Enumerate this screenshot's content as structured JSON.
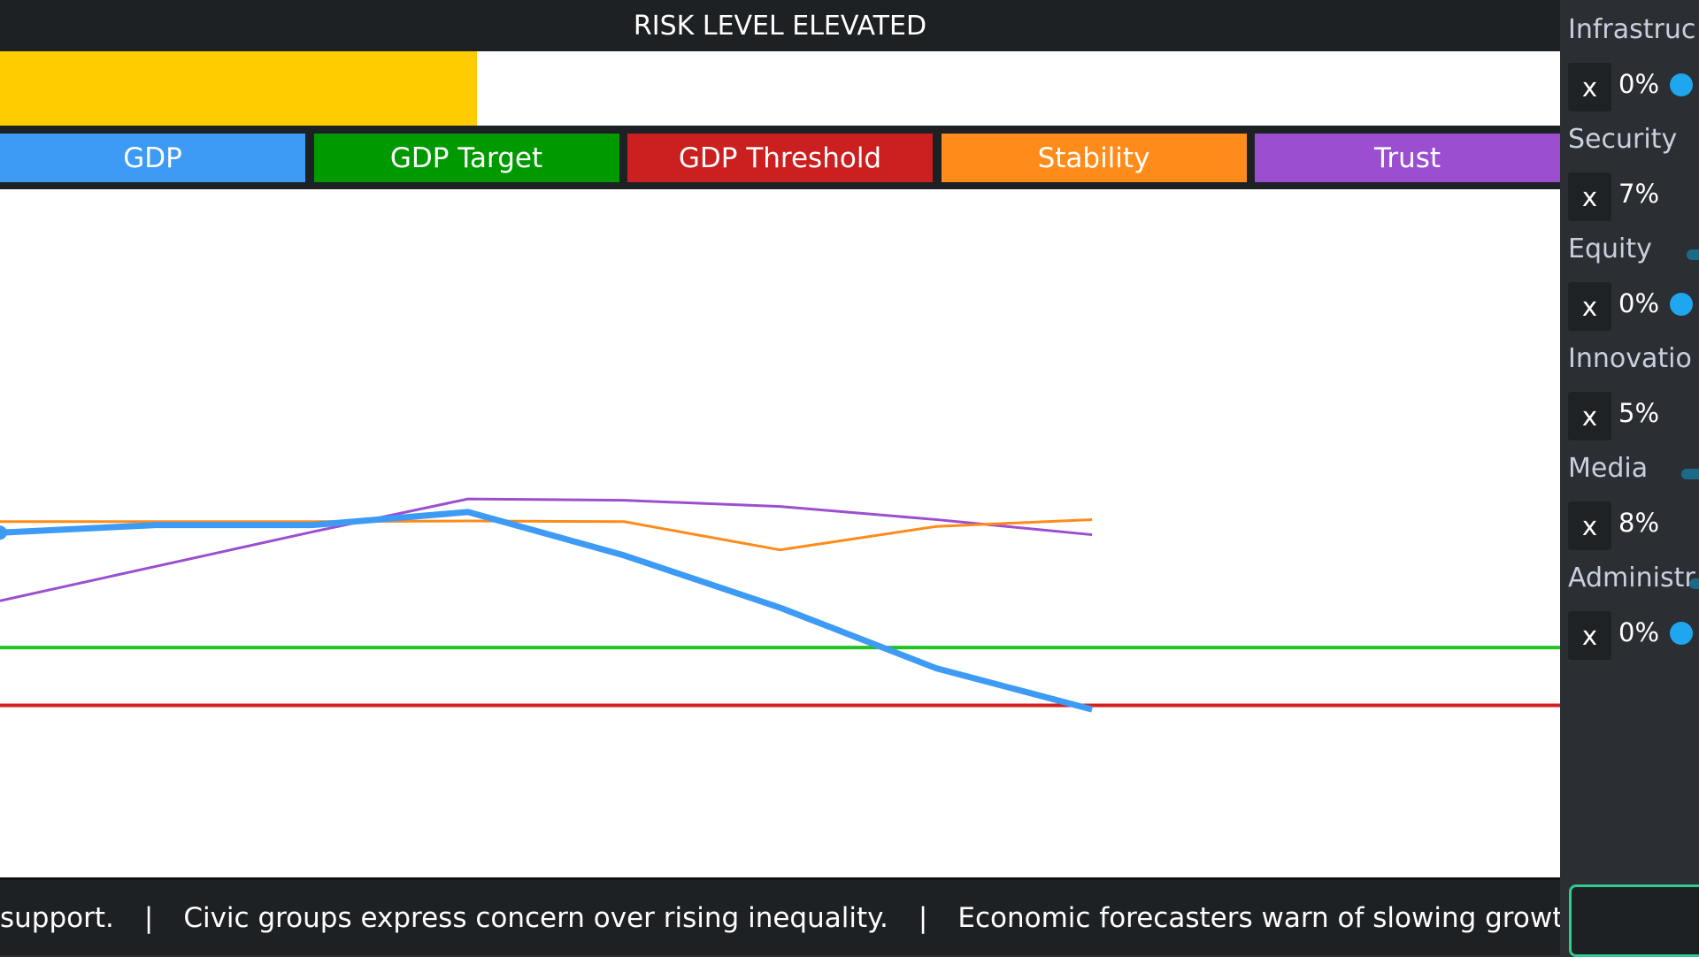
{
  "header": {
    "title": "RISK LEVEL ELEVATED",
    "risk_level": 30.6,
    "risk_range": [
      0,
      100
    ]
  },
  "chart_data": {
    "type": "line",
    "x": [
      0,
      1,
      2,
      3,
      4,
      5,
      6,
      7
    ],
    "xlim": [
      0,
      10
    ],
    "ylim": [
      0,
      100
    ],
    "series": [
      {
        "name": "GDP",
        "color": "#3d9bf5",
        "values": [
          50.1,
          51.2,
          51.2,
          53.1,
          46.8,
          39.2,
          30.4,
          24.4
        ]
      },
      {
        "name": "Stability",
        "color": "#ff8c1a",
        "values": [
          51.7,
          51.7,
          51.7,
          51.8,
          51.7,
          47.6,
          51.0,
          52.0
        ]
      },
      {
        "name": "Trust",
        "color": "#9b4fd0",
        "values": [
          40.2,
          45.2,
          50.2,
          55.0,
          54.8,
          53.9,
          52.0,
          49.8
        ]
      }
    ],
    "reference_lines": [
      {
        "name": "GDP Target",
        "color": "#1fc41f",
        "button_color": "#009a00",
        "value": 33.4
      },
      {
        "name": "GDP Threshold",
        "color": "#d42020",
        "button_color": "#cc1f1f",
        "value": 25.0
      }
    ]
  },
  "ticker": {
    "items": [
      "support.",
      "Civic groups express concern over rising inequality.",
      "Economic forecasters warn of slowing growth."
    ],
    "separator": "|"
  },
  "sidebar": {
    "button": "x",
    "allocations": [
      {
        "label": "Infrastruc",
        "value": 0,
        "value_label": "0%"
      },
      {
        "label": "Security",
        "value": 7,
        "value_label": "7%"
      },
      {
        "label": "Equity",
        "value": 0,
        "value_label": "0%"
      },
      {
        "label": "Innovatio",
        "value": 5,
        "value_label": "5%"
      },
      {
        "label": "Media",
        "value": 8,
        "value_label": "8%"
      },
      {
        "label": "Administr",
        "value": 0,
        "value_label": "0%"
      }
    ]
  }
}
